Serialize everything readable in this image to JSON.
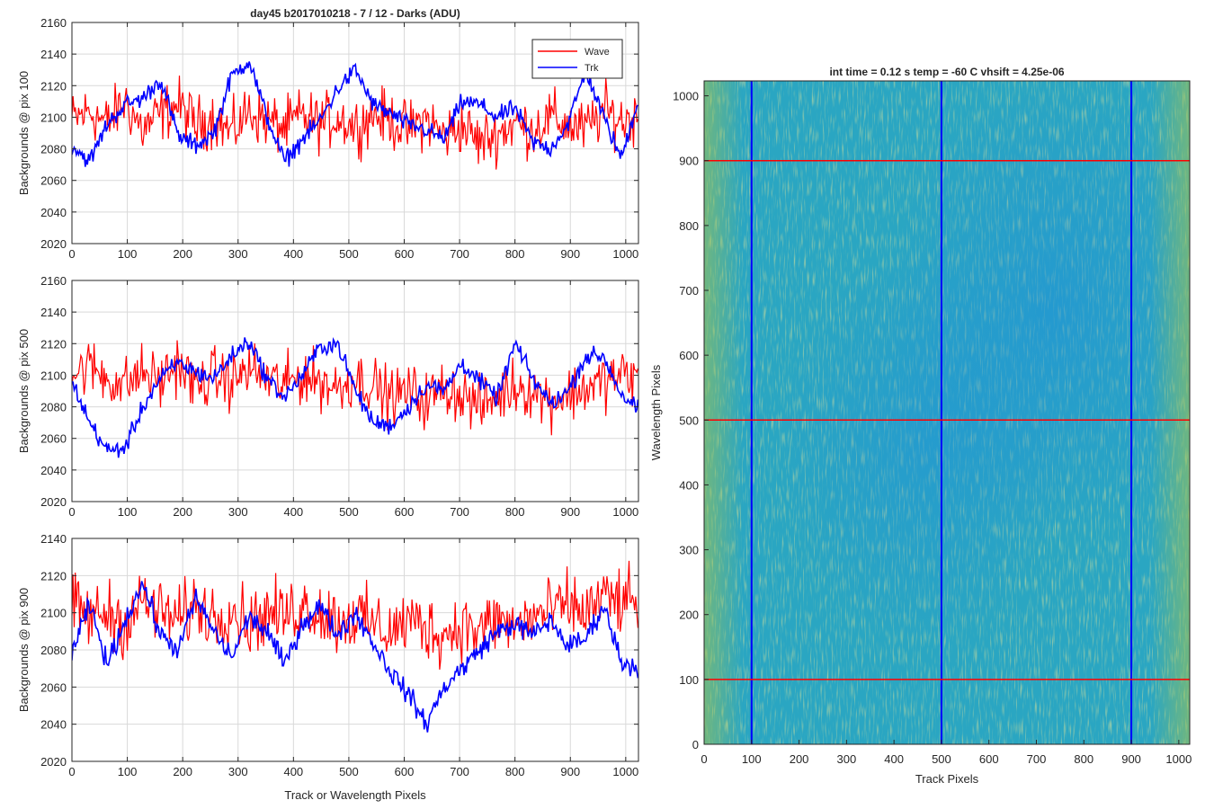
{
  "figure": {
    "suptitle": "day45 b2017010218 - 7 / 12 - Darks (ADU)"
  },
  "chart_data": [
    {
      "type": "line",
      "ylabel": "Backgrounds @ pix 100",
      "xlabel": "",
      "xlim": [
        0,
        1023
      ],
      "ylim": [
        2020,
        2160
      ],
      "xticks": [
        0,
        100,
        200,
        300,
        400,
        500,
        600,
        700,
        800,
        900,
        1000
      ],
      "yticks": [
        2020,
        2040,
        2060,
        2080,
        2100,
        2120,
        2140,
        2160
      ],
      "grid": true,
      "legend": "top-right",
      "series": [
        {
          "name": "Wave",
          "color": "#ff0000",
          "x": [
            0,
            32,
            64,
            96,
            128,
            160,
            192,
            224,
            256,
            288,
            320,
            352,
            384,
            416,
            448,
            480,
            512,
            544,
            576,
            608,
            640,
            672,
            704,
            736,
            768,
            800,
            832,
            864,
            896,
            928,
            960,
            992,
            1023
          ],
          "values": [
            2098,
            2104,
            2096,
            2110,
            2092,
            2102,
            2108,
            2095,
            2100,
            2090,
            2104,
            2098,
            2093,
            2101,
            2096,
            2100,
            2094,
            2102,
            2098,
            2092,
            2099,
            2088,
            2095,
            2084,
            2090,
            2096,
            2092,
            2100,
            2095,
            2092,
            2104,
            2098,
            2100
          ]
        },
        {
          "name": "Trk",
          "color": "#0000ff",
          "x": [
            0,
            32,
            64,
            96,
            128,
            160,
            192,
            224,
            256,
            288,
            320,
            352,
            384,
            416,
            448,
            480,
            512,
            544,
            576,
            608,
            640,
            672,
            704,
            736,
            768,
            800,
            832,
            864,
            896,
            928,
            960,
            992,
            1023
          ],
          "values": [
            2082,
            2072,
            2096,
            2108,
            2112,
            2124,
            2088,
            2082,
            2090,
            2126,
            2136,
            2100,
            2072,
            2086,
            2098,
            2118,
            2130,
            2108,
            2102,
            2095,
            2092,
            2086,
            2110,
            2108,
            2100,
            2106,
            2084,
            2080,
            2096,
            2130,
            2100,
            2074,
            2112
          ]
        }
      ]
    },
    {
      "type": "line",
      "ylabel": "Backgrounds @ pix 500",
      "xlabel": "",
      "xlim": [
        0,
        1023
      ],
      "ylim": [
        2020,
        2160
      ],
      "xticks": [
        0,
        100,
        200,
        300,
        400,
        500,
        600,
        700,
        800,
        900,
        1000
      ],
      "yticks": [
        2020,
        2040,
        2060,
        2080,
        2100,
        2120,
        2140,
        2160
      ],
      "grid": true,
      "series": [
        {
          "name": "Wave",
          "color": "#ff0000",
          "x": [
            0,
            32,
            64,
            96,
            128,
            160,
            192,
            224,
            256,
            288,
            320,
            352,
            384,
            416,
            448,
            480,
            512,
            544,
            576,
            608,
            640,
            672,
            704,
            736,
            768,
            800,
            832,
            864,
            896,
            928,
            960,
            992,
            1023
          ],
          "values": [
            2100,
            2106,
            2098,
            2094,
            2102,
            2096,
            2108,
            2092,
            2100,
            2096,
            2104,
            2098,
            2094,
            2100,
            2096,
            2092,
            2098,
            2094,
            2086,
            2090,
            2084,
            2092,
            2088,
            2080,
            2086,
            2094,
            2090,
            2084,
            2088,
            2092,
            2096,
            2100,
            2098
          ]
        },
        {
          "name": "Trk",
          "color": "#0000ff",
          "x": [
            0,
            32,
            64,
            96,
            128,
            160,
            192,
            224,
            256,
            288,
            320,
            352,
            384,
            416,
            448,
            480,
            512,
            544,
            576,
            608,
            640,
            672,
            704,
            736,
            768,
            800,
            832,
            864,
            896,
            928,
            960,
            992,
            1023
          ],
          "values": [
            2096,
            2070,
            2052,
            2054,
            2080,
            2098,
            2108,
            2102,
            2098,
            2112,
            2122,
            2098,
            2086,
            2100,
            2118,
            2120,
            2090,
            2070,
            2068,
            2080,
            2094,
            2090,
            2108,
            2096,
            2086,
            2120,
            2098,
            2082,
            2090,
            2112,
            2112,
            2088,
            2078
          ]
        }
      ]
    },
    {
      "type": "line",
      "ylabel": "Backgrounds @ pix 900",
      "xlabel": "Track or Wavelength Pixels",
      "xlim": [
        0,
        1023
      ],
      "ylim": [
        2020,
        2140
      ],
      "xticks": [
        0,
        100,
        200,
        300,
        400,
        500,
        600,
        700,
        800,
        900,
        1000
      ],
      "yticks": [
        2020,
        2040,
        2060,
        2080,
        2100,
        2120,
        2140
      ],
      "grid": true,
      "series": [
        {
          "name": "Wave",
          "color": "#ff0000",
          "x": [
            0,
            32,
            64,
            96,
            128,
            160,
            192,
            224,
            256,
            288,
            320,
            352,
            384,
            416,
            448,
            480,
            512,
            544,
            576,
            608,
            640,
            672,
            704,
            736,
            768,
            800,
            832,
            864,
            896,
            928,
            960,
            992,
            1023
          ],
          "values": [
            2104,
            2098,
            2100,
            2094,
            2106,
            2100,
            2096,
            2104,
            2098,
            2102,
            2094,
            2100,
            2098,
            2104,
            2100,
            2096,
            2098,
            2094,
            2090,
            2096,
            2092,
            2088,
            2094,
            2090,
            2096,
            2092,
            2098,
            2100,
            2104,
            2100,
            2108,
            2106,
            2104
          ]
        },
        {
          "name": "Trk",
          "color": "#0000ff",
          "x": [
            0,
            32,
            64,
            96,
            128,
            160,
            192,
            224,
            256,
            288,
            320,
            352,
            384,
            416,
            448,
            480,
            512,
            544,
            576,
            608,
            640,
            672,
            704,
            736,
            768,
            800,
            832,
            864,
            896,
            928,
            960,
            992,
            1023
          ],
          "values": [
            2078,
            2104,
            2072,
            2096,
            2116,
            2088,
            2080,
            2108,
            2090,
            2076,
            2098,
            2090,
            2072,
            2094,
            2104,
            2088,
            2100,
            2084,
            2068,
            2056,
            2040,
            2060,
            2070,
            2080,
            2090,
            2094,
            2088,
            2096,
            2082,
            2086,
            2104,
            2074,
            2070
          ]
        }
      ]
    },
    {
      "type": "heatmap",
      "title": "int time = 0.12 s    temp = -60 C    vhsift = 4.25e-06",
      "xlabel": "Track Pixels",
      "ylabel": "Wavelength Pixels",
      "xlim": [
        0,
        1023
      ],
      "ylim": [
        0,
        1023
      ],
      "xticks": [
        0,
        100,
        200,
        300,
        400,
        500,
        600,
        700,
        800,
        900,
        1000
      ],
      "yticks": [
        0,
        100,
        200,
        300,
        400,
        500,
        600,
        700,
        800,
        900,
        1000
      ],
      "colormap": "parula",
      "vertical_markers": {
        "color": "#0000ff",
        "x": [
          100,
          500,
          900
        ]
      },
      "horizontal_markers": {
        "color": "#ff0000",
        "y": [
          100,
          500,
          900
        ]
      }
    }
  ]
}
